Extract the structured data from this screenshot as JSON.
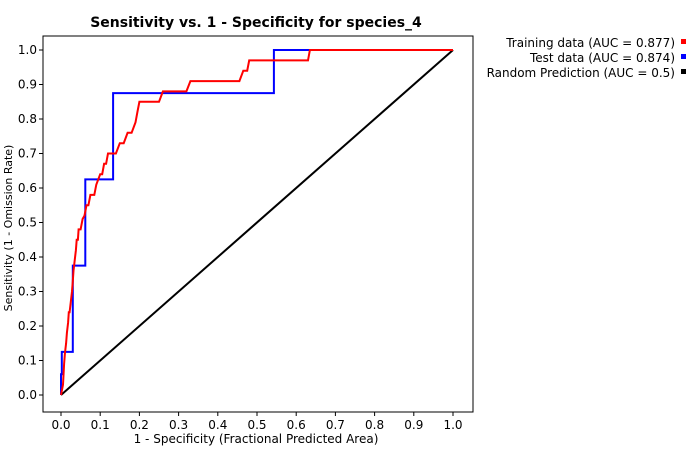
{
  "chart_data": {
    "type": "line",
    "title": "Sensitivity vs. 1 - Specificity for species_4",
    "xlabel": "1 - Specificity  (Fractional Predicted Area)",
    "ylabel": "Sensitivity (1 - Omission Rate)",
    "xlim": [
      0,
      1
    ],
    "ylim": [
      0,
      1
    ],
    "xticks": [
      "0.0",
      "0.1",
      "0.2",
      "0.3",
      "0.4",
      "0.5",
      "0.6",
      "0.7",
      "0.8",
      "0.9",
      "1.0"
    ],
    "yticks": [
      "0.0",
      "0.1",
      "0.2",
      "0.3",
      "0.4",
      "0.5",
      "0.6",
      "0.7",
      "0.8",
      "0.9",
      "1.0"
    ],
    "grid": true,
    "legend_position": "outside-top-right",
    "series": [
      {
        "name": "Training data (AUC = 0.877)",
        "color": "#ff0000",
        "x": [
          0.0,
          0.005,
          0.008,
          0.01,
          0.013,
          0.015,
          0.018,
          0.02,
          0.022,
          0.025,
          0.028,
          0.03,
          0.032,
          0.035,
          0.038,
          0.04,
          0.043,
          0.045,
          0.048,
          0.05,
          0.055,
          0.06,
          0.065,
          0.07,
          0.075,
          0.08,
          0.085,
          0.09,
          0.1,
          0.105,
          0.11,
          0.115,
          0.12,
          0.125,
          0.13,
          0.14,
          0.15,
          0.16,
          0.17,
          0.18,
          0.19,
          0.195,
          0.2,
          0.25,
          0.26,
          0.32,
          0.33,
          0.455,
          0.465,
          0.475,
          0.48,
          0.63,
          0.635,
          1.0
        ],
        "y": [
          0.0,
          0.03,
          0.09,
          0.12,
          0.15,
          0.18,
          0.21,
          0.24,
          0.24,
          0.27,
          0.3,
          0.33,
          0.36,
          0.39,
          0.42,
          0.45,
          0.45,
          0.48,
          0.48,
          0.48,
          0.51,
          0.52,
          0.55,
          0.55,
          0.58,
          0.58,
          0.58,
          0.61,
          0.64,
          0.64,
          0.67,
          0.67,
          0.7,
          0.7,
          0.7,
          0.7,
          0.73,
          0.73,
          0.76,
          0.76,
          0.79,
          0.82,
          0.85,
          0.85,
          0.88,
          0.88,
          0.91,
          0.91,
          0.94,
          0.94,
          0.97,
          0.97,
          1.0,
          1.0
        ]
      },
      {
        "name": "Test data (AUC = 0.874)",
        "color": "#0000ff",
        "x": [
          0.0,
          0.0,
          0.002,
          0.002,
          0.03,
          0.03,
          0.062,
          0.062,
          0.133,
          0.133,
          0.543,
          0.543,
          1.0
        ],
        "y": [
          0.0,
          0.06,
          0.06,
          0.125,
          0.125,
          0.375,
          0.375,
          0.625,
          0.625,
          0.875,
          0.875,
          1.0,
          1.0
        ]
      },
      {
        "name": "Random Prediction (AUC = 0.5)",
        "color": "#000000",
        "x": [
          0.0,
          1.0
        ],
        "y": [
          0.0,
          1.0
        ]
      }
    ]
  }
}
